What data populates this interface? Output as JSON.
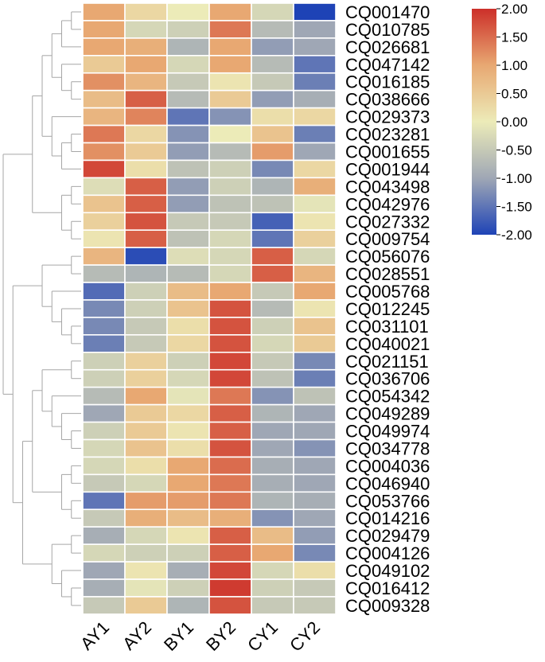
{
  "chart_data": {
    "type": "heatmap",
    "columns": [
      "AY1",
      "AY2",
      "BY1",
      "BY2",
      "CY1",
      "CY2"
    ],
    "rows": [
      "CQ001470",
      "CQ010785",
      "CQ026681",
      "CQ047142",
      "CQ016185",
      "CQ038666",
      "CQ029373",
      "CQ023281",
      "CQ001655",
      "CQ001944",
      "CQ043498",
      "CQ042976",
      "CQ027332",
      "CQ009754",
      "CQ056076",
      "CQ028551",
      "CQ005768",
      "CQ012245",
      "CQ031101",
      "CQ040021",
      "CQ021151",
      "CQ036706",
      "CQ054342",
      "CQ049289",
      "CQ049974",
      "CQ034778",
      "CQ004036",
      "CQ046940",
      "CQ053766",
      "CQ014216",
      "CQ029479",
      "CQ004126",
      "CQ049102",
      "CQ016412",
      "CQ009328"
    ],
    "values": [
      [
        1.0,
        0.3,
        0.0,
        1.0,
        -0.3,
        -2.0
      ],
      [
        1.0,
        -0.3,
        -0.4,
        1.4,
        -0.7,
        -1.0
      ],
      [
        1.0,
        0.9,
        -0.8,
        1.0,
        -1.1,
        -1.0
      ],
      [
        0.5,
        1.0,
        -0.3,
        1.0,
        -0.7,
        -1.5
      ],
      [
        1.2,
        0.8,
        -0.5,
        0.1,
        -0.5,
        -1.4
      ],
      [
        0.7,
        1.6,
        -0.7,
        0.5,
        -1.1,
        -0.9
      ],
      [
        0.8,
        1.3,
        -1.5,
        -1.2,
        0.2,
        0.3
      ],
      [
        1.4,
        0.3,
        -1.2,
        0.0,
        0.6,
        -1.4
      ],
      [
        1.2,
        0.5,
        -1.1,
        -0.7,
        1.1,
        -1.0
      ],
      [
        1.8,
        0.2,
        -0.6,
        -0.4,
        -1.3,
        0.3
      ],
      [
        -0.2,
        1.6,
        -1.1,
        -0.4,
        -0.8,
        0.9
      ],
      [
        0.6,
        1.6,
        -1.1,
        -0.6,
        -0.6,
        -0.1
      ],
      [
        0.4,
        1.7,
        -0.5,
        -0.5,
        -1.7,
        0.1
      ],
      [
        0.1,
        1.6,
        -0.6,
        -0.3,
        -1.5,
        0.4
      ],
      [
        0.8,
        -1.9,
        -0.2,
        -0.3,
        1.6,
        -0.3
      ],
      [
        -0.7,
        -0.8,
        -0.7,
        -0.3,
        1.6,
        0.8
      ],
      [
        -1.6,
        -0.4,
        0.7,
        1.0,
        -0.5,
        1.0
      ],
      [
        -1.3,
        -0.4,
        0.6,
        1.7,
        -0.7,
        0.1
      ],
      [
        -1.3,
        -0.5,
        0.2,
        1.7,
        -0.4,
        0.6
      ],
      [
        -1.4,
        -0.5,
        0.3,
        1.7,
        -0.3,
        0.5
      ],
      [
        -0.4,
        0.4,
        -0.4,
        1.8,
        -0.5,
        -1.3
      ],
      [
        -0.4,
        0.4,
        -0.3,
        1.8,
        -0.6,
        -1.4
      ],
      [
        -0.7,
        1.0,
        -0.1,
        1.4,
        -1.2,
        -0.6
      ],
      [
        -1.0,
        0.5,
        0.3,
        1.6,
        -0.8,
        -1.0
      ],
      [
        -0.4,
        0.5,
        0.1,
        1.6,
        -1.0,
        -1.0
      ],
      [
        -0.3,
        0.6,
        0.2,
        1.7,
        -1.0,
        -1.2
      ],
      [
        -0.3,
        0.2,
        1.0,
        1.5,
        -0.9,
        -1.0
      ],
      [
        -0.5,
        -0.3,
        1.0,
        1.4,
        -0.9,
        -1.0
      ],
      [
        -1.5,
        1.1,
        1.1,
        1.4,
        -0.8,
        -0.9
      ],
      [
        -0.5,
        0.9,
        0.7,
        0.9,
        -1.2,
        -1.0
      ],
      [
        -0.9,
        -0.3,
        0.1,
        1.6,
        0.7,
        -1.1
      ],
      [
        -0.3,
        -0.4,
        -0.4,
        1.6,
        1.0,
        -1.3
      ],
      [
        -1.0,
        0.1,
        -0.9,
        1.8,
        -0.3,
        0.2
      ],
      [
        -0.9,
        -0.1,
        -0.4,
        1.9,
        -0.4,
        -0.5
      ],
      [
        -0.5,
        0.5,
        -0.8,
        1.7,
        -0.5,
        -0.5
      ]
    ],
    "colorbar": {
      "min": -2.0,
      "max": 2.0,
      "ticks": [
        "2.00",
        "1.50",
        "1.00",
        "0.50",
        "0.00",
        "-0.50",
        "-1.00",
        "-1.50",
        "-2.00"
      ],
      "colors": {
        "low": "#1e43b6",
        "mid_low": "#9fa7b5",
        "mid": "#ecebb8",
        "mid_high": "#e8a872",
        "high": "#cc2f29"
      }
    },
    "dendrogram": {
      "row_order_leaves": 35,
      "clusters": "hierarchical",
      "line_color": "#a6a6a6"
    },
    "grid_color": "#ffffff"
  }
}
